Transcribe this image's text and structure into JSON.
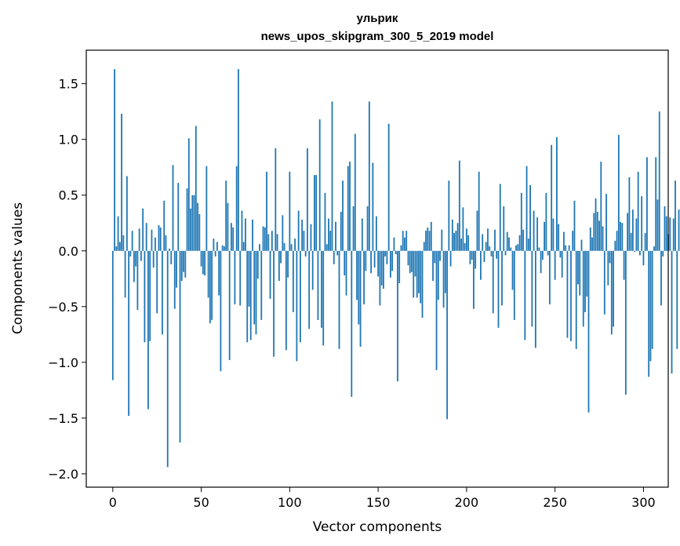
{
  "chart_data": {
    "type": "bar",
    "title_line1": "ульрик",
    "title_line2": "news_upos_skipgram_300_5_2019 model",
    "xlabel": "Vector components",
    "ylabel": "Components values",
    "xlim": [
      -15,
      314
    ],
    "ylim": [
      -2.12,
      1.8
    ],
    "xticks": [
      0,
      50,
      100,
      150,
      200,
      250,
      300
    ],
    "xtick_labels": [
      "0",
      "50",
      "100",
      "150",
      "200",
      "250",
      "300"
    ],
    "yticks": [
      -2.0,
      -1.5,
      -1.0,
      -0.5,
      0.0,
      0.5,
      1.0,
      1.5
    ],
    "ytick_labels": [
      "−2.0",
      "−1.5",
      "−1.0",
      "−0.5",
      "0.0",
      "0.5",
      "1.0",
      "1.5"
    ],
    "bar_color": "#1f77b4",
    "values": [
      -1.16,
      1.63,
      0.04,
      0.31,
      0.08,
      1.23,
      0.14,
      -0.42,
      0.67,
      -1.48,
      -0.05,
      0.18,
      -0.28,
      -0.14,
      -0.53,
      0.2,
      -0.09,
      0.38,
      -0.82,
      0.25,
      -1.42,
      -0.81,
      0.19,
      -0.15,
      0.12,
      -0.56,
      0.23,
      0.21,
      -0.75,
      0.45,
      0.14,
      -1.94,
      0.02,
      -0.12,
      0.77,
      -0.52,
      -0.33,
      0.61,
      -1.72,
      -0.27,
      -0.19,
      -0.24,
      0.56,
      1.01,
      0.38,
      0.5,
      0.5,
      1.12,
      0.43,
      0.33,
      -0.14,
      -0.21,
      -0.22,
      0.76,
      -0.42,
      -0.65,
      -0.62,
      0.11,
      -0.05,
      0.08,
      -0.4,
      -1.08,
      0.05,
      0.04,
      0.63,
      0.43,
      -0.98,
      0.25,
      0.21,
      -0.48,
      0.76,
      1.63,
      -0.49,
      0.36,
      0.08,
      0.29,
      -0.82,
      -0.5,
      -0.8,
      0.28,
      -0.66,
      -0.75,
      -0.25,
      0.06,
      -0.62,
      0.22,
      0.21,
      0.71,
      0.15,
      -0.43,
      0.18,
      -0.95,
      0.92,
      0.15,
      -0.27,
      -0.11,
      0.32,
      0.07,
      -0.89,
      -0.24,
      0.71,
      0.06,
      -0.55,
      0.11,
      -0.99,
      0.36,
      -0.82,
      0.28,
      0.18,
      -0.05,
      0.92,
      -0.7,
      0.24,
      -0.35,
      0.68,
      0.68,
      -0.62,
      1.18,
      -0.69,
      -0.85,
      0.52,
      0.06,
      0.29,
      0.18,
      1.34,
      -0.12,
      0.26,
      -0.04,
      -0.88,
      0.35,
      0.63,
      -0.22,
      -0.4,
      0.76,
      0.8,
      -1.31,
      0.4,
      1.05,
      -0.44,
      -0.66,
      -0.86,
      0.29,
      -0.48,
      -0.18,
      0.4,
      1.34,
      -0.2,
      0.79,
      -0.15,
      0.31,
      -0.23,
      -0.49,
      -0.31,
      -0.34,
      -0.05,
      -0.12,
      1.14,
      -0.24,
      -0.18,
      0.12,
      -0.03,
      -1.17,
      -0.29,
      0.05,
      0.18,
      0.12,
      0.18,
      -0.13,
      -0.2,
      -0.19,
      -0.42,
      -0.23,
      -0.42,
      -0.38,
      -0.47,
      -0.6,
      0.08,
      0.18,
      0.21,
      0.18,
      0.26,
      -0.27,
      -0.11,
      -1.07,
      -0.44,
      -0.09,
      0.19,
      -0.51,
      -0.38,
      -1.51,
      0.63,
      -0.14,
      0.28,
      0.16,
      0.18,
      0.25,
      0.81,
      0.11,
      0.39,
      0.07,
      0.2,
      0.14,
      -0.12,
      -0.08,
      -0.52,
      -0.16,
      0.36,
      0.71,
      -0.26,
      0.15,
      -0.1,
      0.08,
      0.2,
      0.04,
      -0.05,
      -0.56,
      0.19,
      -0.07,
      -0.69,
      0.6,
      -0.49,
      0.4,
      -0.04,
      0.17,
      0.12,
      0.03,
      -0.35,
      -0.62,
      0.05,
      0.06,
      0.14,
      0.52,
      0.19,
      -0.8,
      0.76,
      0.11,
      0.59,
      -0.68,
      0.36,
      -0.87,
      0.3,
      0.03,
      -0.2,
      -0.08,
      0.26,
      0.52,
      -0.04,
      -0.48,
      0.95,
      0.29,
      -0.26,
      1.02,
      0.24,
      -0.06,
      -0.24,
      0.17,
      0.05,
      -0.78,
      0.05,
      -0.81,
      0.18,
      0.45,
      -0.88,
      -0.3,
      -0.4,
      0.1,
      -0.68,
      -0.55,
      -0.41,
      -1.45,
      0.21,
      0.12,
      0.34,
      0.47,
      0.35,
      0.27,
      0.8,
      0.22,
      -0.57,
      0.51,
      -0.31,
      -0.11,
      -0.75,
      -0.68,
      0.09,
      0.18,
      1.04,
      0.26,
      0.25,
      -0.26,
      -1.29,
      0.34,
      0.66,
      0.16,
      0.37,
      -0.01,
      0.29,
      0.71,
      -0.04,
      0.49,
      -0.13,
      0.16,
      0.84,
      -1.13,
      -0.99,
      -0.88,
      0.04,
      0.84,
      0.46,
      1.25,
      -0.49,
      -0.05,
      0.4,
      0.31,
      0.15,
      0.3,
      -1.1,
      0.29,
      0.63,
      -0.88,
      0.37
    ]
  }
}
